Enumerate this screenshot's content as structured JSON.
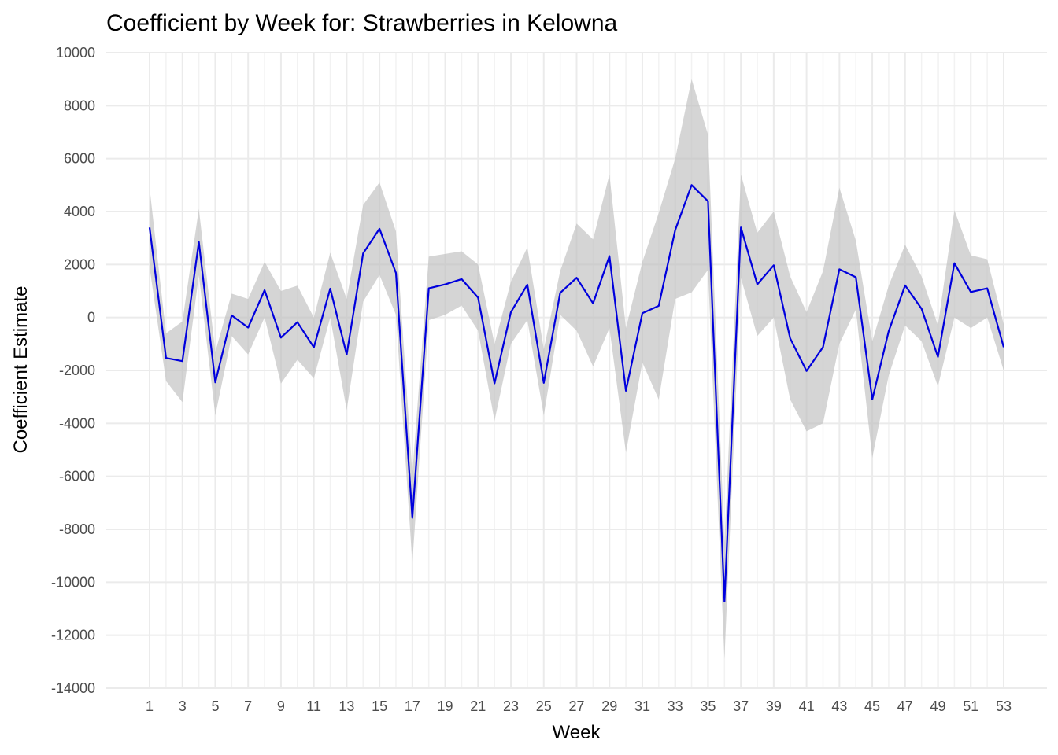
{
  "chart_data": {
    "type": "line",
    "title": "Coefficient by Week for: Strawberries in Kelowna",
    "xlabel": "Week",
    "ylabel": "Coefficient Estimate",
    "xlim": [
      1,
      53
    ],
    "ylim": [
      -14000,
      10000
    ],
    "x_ticks": [
      1,
      3,
      5,
      7,
      9,
      11,
      13,
      15,
      17,
      19,
      21,
      23,
      25,
      27,
      29,
      31,
      33,
      35,
      37,
      39,
      41,
      43,
      45,
      47,
      49,
      51,
      53
    ],
    "y_ticks": [
      10000,
      8000,
      6000,
      4000,
      2000,
      0,
      -2000,
      -4000,
      -6000,
      -8000,
      -10000,
      -12000,
      -14000
    ],
    "y_tick_labels": [
      "10000",
      "8000",
      "6000",
      "4000",
      "2000",
      "0",
      "-2000",
      "-4000",
      "-6000",
      "-8000",
      "-10000",
      "-12000",
      "-14000"
    ],
    "grid": true,
    "line_color": "#0000dd",
    "band_color": "#bebebe",
    "series": [
      {
        "x": [
          1,
          2,
          3,
          4,
          5,
          6,
          7,
          8,
          9,
          10,
          11,
          12,
          13,
          14,
          15,
          16,
          17,
          18,
          19,
          20,
          21,
          22,
          23,
          24,
          25,
          26,
          27,
          28,
          29,
          30,
          31,
          32,
          33,
          34,
          35,
          36,
          37,
          38,
          39,
          40,
          41,
          42,
          43,
          44,
          45,
          46,
          47,
          48,
          49,
          50,
          51,
          52,
          53
        ],
        "estimate": [
          3400,
          -1530,
          -1650,
          2850,
          -2450,
          80,
          -380,
          1030,
          -760,
          -180,
          -1130,
          1090,
          -1400,
          2420,
          3350,
          1680,
          -7570,
          1100,
          1250,
          1450,
          750,
          -2490,
          200,
          1240,
          -2470,
          930,
          1500,
          530,
          2320,
          -2770,
          160,
          440,
          3300,
          5000,
          4390,
          -10730,
          3400,
          1250,
          1970,
          -790,
          -2020,
          -1120,
          1820,
          1520,
          -3090,
          -520,
          1210,
          330,
          -1490,
          2050,
          960,
          1100,
          -1120
        ],
        "lower": [
          1900,
          -2400,
          -3200,
          1600,
          -3700,
          -700,
          -1400,
          0,
          -2500,
          -1600,
          -2300,
          0,
          -3500,
          600,
          1600,
          100,
          -9300,
          -100,
          100,
          450,
          -500,
          -3900,
          -1000,
          -100,
          -3700,
          100,
          -500,
          -1850,
          -400,
          -5100,
          -1700,
          -3100,
          700,
          950,
          1800,
          -12900,
          1500,
          -700,
          0,
          -3100,
          -4300,
          -4000,
          -1000,
          300,
          -5300,
          -2200,
          -300,
          -900,
          -2600,
          0,
          -400,
          0,
          -2000
        ],
        "upper": [
          4900,
          -600,
          -150,
          4100,
          -1300,
          900,
          700,
          2100,
          1000,
          1200,
          0,
          2450,
          700,
          4250,
          5100,
          3250,
          -5900,
          2300,
          2400,
          2500,
          2000,
          -1000,
          1350,
          2650,
          -1200,
          1750,
          3550,
          2950,
          5400,
          -400,
          2100,
          3950,
          6000,
          9000,
          6900,
          -8500,
          5400,
          3200,
          4000,
          1550,
          200,
          1750,
          4900,
          2900,
          -900,
          1200,
          2750,
          1550,
          -300,
          4050,
          2350,
          2200,
          -250
        ]
      }
    ]
  }
}
